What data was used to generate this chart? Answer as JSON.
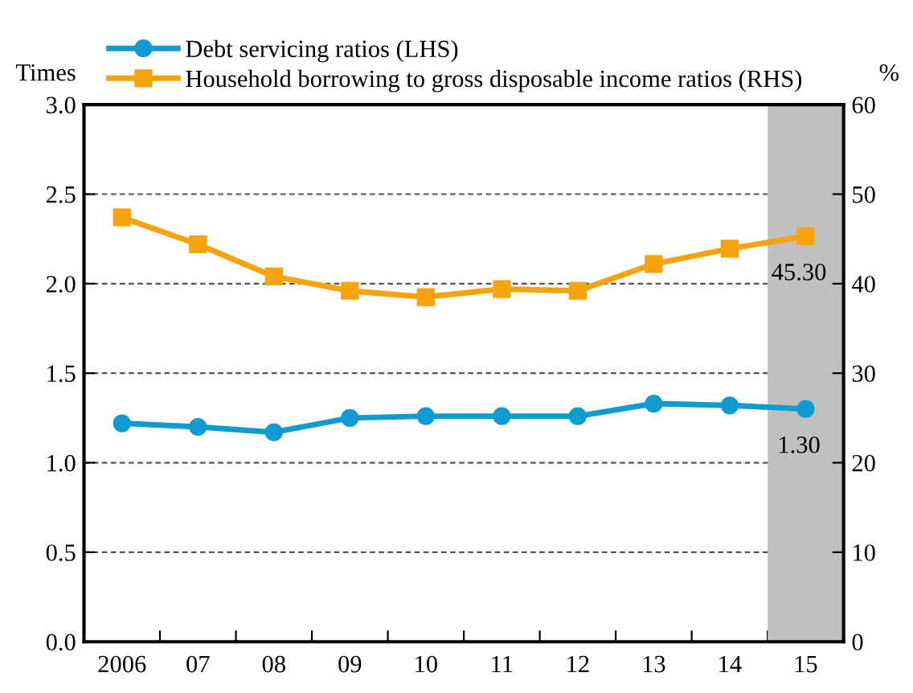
{
  "chart_data": {
    "type": "line",
    "categories": [
      "2006",
      "07",
      "08",
      "09",
      "10",
      "11",
      "12",
      "13",
      "14",
      "15"
    ],
    "series": [
      {
        "name": "Debt servicing ratios (LHS)",
        "color": "#0e9bd0",
        "marker": "circle",
        "values": [
          1.22,
          1.2,
          1.17,
          1.25,
          1.26,
          1.26,
          1.26,
          1.33,
          1.32,
          1.3
        ],
        "value_labels": [
          null,
          null,
          null,
          null,
          null,
          null,
          null,
          null,
          null,
          "1.30"
        ]
      },
      {
        "name": "Household borrowing to gross disposable income ratios (RHS)",
        "color": "#f7a30c",
        "marker": "square",
        "axis": "y2",
        "values": [
          47.4,
          44.4,
          40.8,
          39.2,
          38.5,
          39.4,
          39.2,
          42.2,
          43.9,
          45.3
        ],
        "value_labels": [
          null,
          null,
          null,
          null,
          null,
          null,
          null,
          null,
          null,
          "45.30"
        ]
      }
    ],
    "ylabel": "Times",
    "y2label": "%",
    "ylim": [
      0,
      3.0
    ],
    "yticks": [
      {
        "value": 0,
        "label": "0.0"
      },
      {
        "value": 0.5,
        "label": "0.5"
      },
      {
        "value": 1.0,
        "label": "1.0"
      },
      {
        "value": 1.5,
        "label": "1.5"
      },
      {
        "value": 2.0,
        "label": "2.0"
      },
      {
        "value": 2.5,
        "label": "2.5"
      },
      {
        "value": 3.0,
        "label": "3.0"
      }
    ],
    "y2lim": [
      0,
      60
    ],
    "y2ticks": [
      0,
      10,
      20,
      30,
      40,
      50,
      60
    ],
    "bands": [
      {
        "axis": "x",
        "from": "15",
        "to": "15",
        "color": "#c0c0c0"
      }
    ],
    "grid": "y",
    "line_style": "solid",
    "legend": "top left"
  }
}
